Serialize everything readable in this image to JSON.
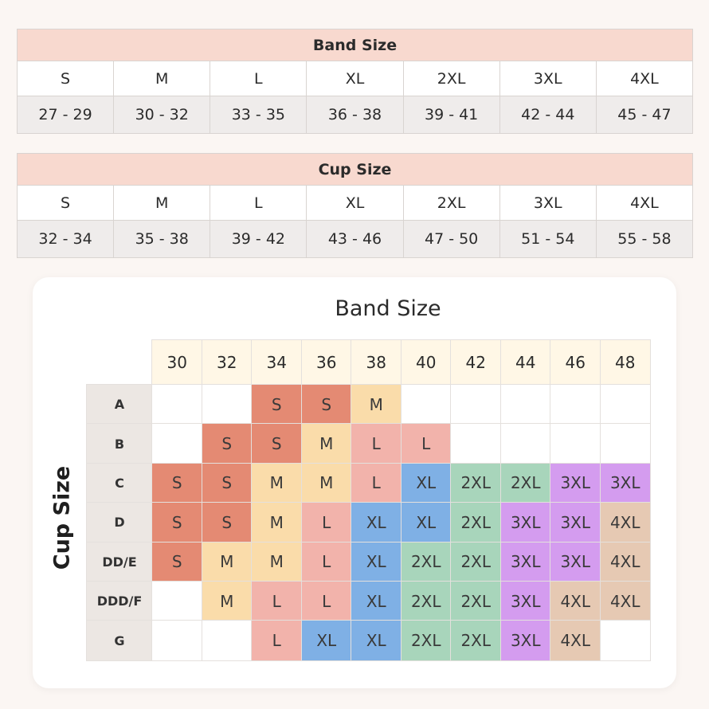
{
  "band_table": {
    "title": "Band Size",
    "sizes": [
      "S",
      "M",
      "L",
      "XL",
      "2XL",
      "3XL",
      "4XL"
    ],
    "ranges": [
      "27 - 29",
      "30 - 32",
      "33 - 35",
      "36 - 38",
      "39 - 41",
      "42 - 44",
      "45 - 47"
    ]
  },
  "cup_table": {
    "title": "Cup Size",
    "sizes": [
      "S",
      "M",
      "L",
      "XL",
      "2XL",
      "3XL",
      "4XL"
    ],
    "ranges": [
      "32 - 34",
      "35 - 38",
      "39 - 42",
      "43 - 46",
      "47 - 50",
      "51 - 54",
      "55 - 58"
    ]
  },
  "chart": {
    "title": "Band Size",
    "y_title": "Cup Size",
    "columns": [
      "30",
      "32",
      "34",
      "36",
      "38",
      "40",
      "42",
      "44",
      "46",
      "48"
    ],
    "rows": [
      {
        "label": "A",
        "cells": [
          "",
          "",
          "S",
          "S",
          "M",
          "",
          "",
          "",
          "",
          ""
        ]
      },
      {
        "label": "B",
        "cells": [
          "",
          "S",
          "S",
          "M",
          "L",
          "L",
          "",
          "",
          "",
          ""
        ]
      },
      {
        "label": "C",
        "cells": [
          "S",
          "S",
          "M",
          "M",
          "L",
          "XL",
          "2XL",
          "2XL",
          "3XL",
          "3XL"
        ]
      },
      {
        "label": "D",
        "cells": [
          "S",
          "S",
          "M",
          "L",
          "XL",
          "XL",
          "2XL",
          "3XL",
          "3XL",
          "4XL"
        ]
      },
      {
        "label": "DD/E",
        "cells": [
          "S",
          "M",
          "M",
          "L",
          "XL",
          "2XL",
          "2XL",
          "3XL",
          "3XL",
          "4XL"
        ]
      },
      {
        "label": "DDD/F",
        "cells": [
          "",
          "M",
          "L",
          "L",
          "XL",
          "2XL",
          "2XL",
          "3XL",
          "4XL",
          "4XL"
        ]
      },
      {
        "label": "G",
        "cells": [
          "",
          "",
          "L",
          "XL",
          "XL",
          "2XL",
          "2XL",
          "3XL",
          "4XL",
          ""
        ]
      }
    ],
    "size_colors": {
      "S": "#e48a73",
      "M": "#fadcaa",
      "L": "#f2b3ab",
      "XL": "#7fb0e5",
      "2XL": "#a8d5bb",
      "3XL": "#d49cef",
      "4XL": "#e6c9b3"
    }
  }
}
